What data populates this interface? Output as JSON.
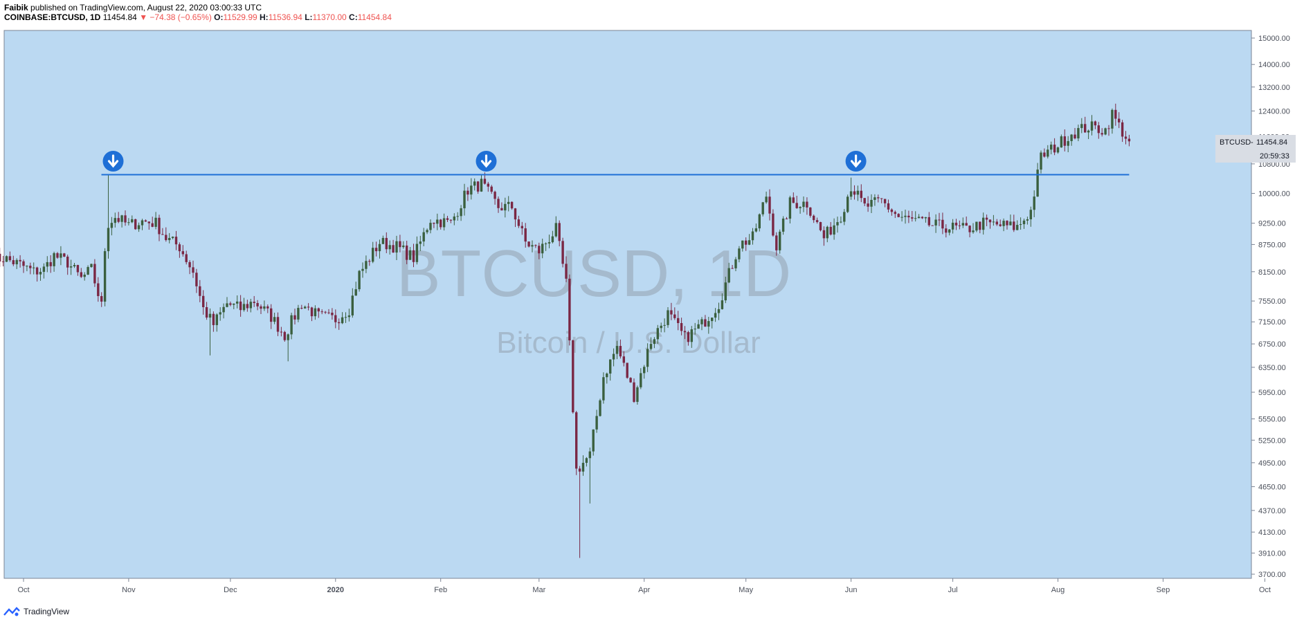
{
  "header": {
    "publisher": "Faibik",
    "published_text": "published on TradingView.com, August 22, 2020 03:00:33 UTC",
    "symbol": "COINBASE:BTCUSD, 1D",
    "last": "11454.84",
    "change": "▼ −74.38 (−0.65%)",
    "o_label": "O:",
    "o_value": "11529.99",
    "h_label": "H:",
    "h_value": "11536.94",
    "l_label": "L:",
    "l_value": "11370.00",
    "c_label": "C:",
    "c_value": "11454.84"
  },
  "watermark": {
    "symbol": "BTCUSD, 1D",
    "name": "Bitcoin / U.S. Dollar"
  },
  "price_tag": {
    "label": "BTCUSD",
    "value": "11454.84",
    "countdown": "20:59:33"
  },
  "footer": {
    "brand": "TradingView"
  },
  "colors": {
    "background": "#bbd9f2",
    "up": "#3a5f3e",
    "down": "#7a2744",
    "line": "#1e6fd6",
    "tag_bg": "#d9dde4"
  },
  "chart_data": {
    "type": "candlestick",
    "y_scale": "log",
    "ylim": [
      3700,
      15000
    ],
    "y_ticks": [
      "15000.00",
      "14000.00",
      "13200.00",
      "12400.00",
      "11600.00",
      "10800.00",
      "10000.00",
      "9250.00",
      "8750.00",
      "8150.00",
      "7550.00",
      "7150.00",
      "6750.00",
      "6350.00",
      "5950.00",
      "5550.00",
      "5250.00",
      "4950.00",
      "4650.00",
      "4370.00",
      "4130.00",
      "3910.00",
      "3700.00"
    ],
    "x_ticks": [
      {
        "label": "Oct",
        "date": "2019-10-01"
      },
      {
        "label": "Nov",
        "date": "2019-11-01"
      },
      {
        "label": "Dec",
        "date": "2019-12-01"
      },
      {
        "label": "2020",
        "date": "2020-01-01"
      },
      {
        "label": "Feb",
        "date": "2020-02-01"
      },
      {
        "label": "Mar",
        "date": "2020-03-01"
      },
      {
        "label": "Apr",
        "date": "2020-04-01"
      },
      {
        "label": "May",
        "date": "2020-05-01"
      },
      {
        "label": "Jun",
        "date": "2020-06-01"
      },
      {
        "label": "Jul",
        "date": "2020-07-01"
      },
      {
        "label": "Aug",
        "date": "2020-08-01"
      },
      {
        "label": "Sep",
        "date": "2020-09-01"
      },
      {
        "label": "Oct",
        "date": "2020-10-01"
      }
    ],
    "resistance_line": {
      "value": 10500,
      "from": "2019-10-26",
      "to": "2020-08-22"
    },
    "markers": [
      {
        "type": "arrow-down",
        "date": "2019-10-26"
      },
      {
        "type": "arrow-down",
        "date": "2020-02-13"
      },
      {
        "type": "arrow-down",
        "date": "2020-06-01"
      }
    ],
    "series": [
      {
        "date": "2019-09-22",
        "close": 8400
      },
      {
        "date": "2019-09-25",
        "close": 8450
      },
      {
        "date": "2019-09-30",
        "close": 8300
      },
      {
        "date": "2019-10-04",
        "close": 8150
      },
      {
        "date": "2019-10-07",
        "close": 8200
      },
      {
        "date": "2019-10-10",
        "close": 8500
      },
      {
        "date": "2019-10-14",
        "close": 8350
      },
      {
        "date": "2019-10-18",
        "close": 8000
      },
      {
        "date": "2019-10-21",
        "close": 8200
      },
      {
        "date": "2019-10-24",
        "close": 7450
      },
      {
        "date": "2019-10-25",
        "close": 8650
      },
      {
        "date": "2019-10-26",
        "close": 9250
      },
      {
        "date": "2019-10-28",
        "close": 9400
      },
      {
        "date": "2019-11-01",
        "close": 9200
      },
      {
        "date": "2019-11-05",
        "close": 9300
      },
      {
        "date": "2019-11-09",
        "close": 9250
      },
      {
        "date": "2019-11-12",
        "close": 8900
      },
      {
        "date": "2019-11-16",
        "close": 8700
      },
      {
        "date": "2019-11-20",
        "close": 8150
      },
      {
        "date": "2019-11-23",
        "close": 7400
      },
      {
        "date": "2019-11-26",
        "close": 7100
      },
      {
        "date": "2019-11-30",
        "close": 7500
      },
      {
        "date": "2019-12-04",
        "close": 7400
      },
      {
        "date": "2019-12-08",
        "close": 7550
      },
      {
        "date": "2019-12-13",
        "close": 7250
      },
      {
        "date": "2019-12-17",
        "close": 6900
      },
      {
        "date": "2019-12-19",
        "close": 7150
      },
      {
        "date": "2019-12-22",
        "close": 7500
      },
      {
        "date": "2019-12-27",
        "close": 7250
      },
      {
        "date": "2020-01-01",
        "close": 7200
      },
      {
        "date": "2020-01-05",
        "close": 7400
      },
      {
        "date": "2020-01-08",
        "close": 8100
      },
      {
        "date": "2020-01-14",
        "close": 8800
      },
      {
        "date": "2020-01-19",
        "close": 8700
      },
      {
        "date": "2020-01-24",
        "close": 8450
      },
      {
        "date": "2020-01-29",
        "close": 9350
      },
      {
        "date": "2020-02-04",
        "close": 9250
      },
      {
        "date": "2020-02-09",
        "close": 10100
      },
      {
        "date": "2020-02-13",
        "close": 10250
      },
      {
        "date": "2020-02-18",
        "close": 9650
      },
      {
        "date": "2020-02-22",
        "close": 9650
      },
      {
        "date": "2020-02-26",
        "close": 8800
      },
      {
        "date": "2020-03-01",
        "close": 8600
      },
      {
        "date": "2020-03-06",
        "close": 9100
      },
      {
        "date": "2020-03-09",
        "close": 7900
      },
      {
        "date": "2020-03-12",
        "close": 4850
      },
      {
        "date": "2020-03-16",
        "close": 5050
      },
      {
        "date": "2020-03-20",
        "close": 6200
      },
      {
        "date": "2020-03-24",
        "close": 6700
      },
      {
        "date": "2020-03-29",
        "close": 5900
      },
      {
        "date": "2020-04-03",
        "close": 6800
      },
      {
        "date": "2020-04-08",
        "close": 7300
      },
      {
        "date": "2020-04-13",
        "close": 6850
      },
      {
        "date": "2020-04-18",
        "close": 7100
      },
      {
        "date": "2020-04-23",
        "close": 7500
      },
      {
        "date": "2020-04-29",
        "close": 8750
      },
      {
        "date": "2020-05-03",
        "close": 8900
      },
      {
        "date": "2020-05-07",
        "close": 9950
      },
      {
        "date": "2020-05-10",
        "close": 8700
      },
      {
        "date": "2020-05-14",
        "close": 9750
      },
      {
        "date": "2020-05-19",
        "close": 9750
      },
      {
        "date": "2020-05-24",
        "close": 8900
      },
      {
        "date": "2020-05-29",
        "close": 9450
      },
      {
        "date": "2020-06-01",
        "close": 10200
      },
      {
        "date": "2020-06-05",
        "close": 9650
      },
      {
        "date": "2020-06-10",
        "close": 9800
      },
      {
        "date": "2020-06-15",
        "close": 9400
      },
      {
        "date": "2020-06-20",
        "close": 9300
      },
      {
        "date": "2020-06-25",
        "close": 9200
      },
      {
        "date": "2020-06-30",
        "close": 9150
      },
      {
        "date": "2020-07-05",
        "close": 9100
      },
      {
        "date": "2020-07-10",
        "close": 9250
      },
      {
        "date": "2020-07-15",
        "close": 9200
      },
      {
        "date": "2020-07-20",
        "close": 9150
      },
      {
        "date": "2020-07-24",
        "close": 9550
      },
      {
        "date": "2020-07-27",
        "close": 11000
      },
      {
        "date": "2020-08-01",
        "close": 11350
      },
      {
        "date": "2020-08-05",
        "close": 11700
      },
      {
        "date": "2020-08-10",
        "close": 11900
      },
      {
        "date": "2020-08-15",
        "close": 11800
      },
      {
        "date": "2020-08-17",
        "close": 12300
      },
      {
        "date": "2020-08-20",
        "close": 11750
      },
      {
        "date": "2020-08-22",
        "close": 11454.84
      }
    ]
  }
}
